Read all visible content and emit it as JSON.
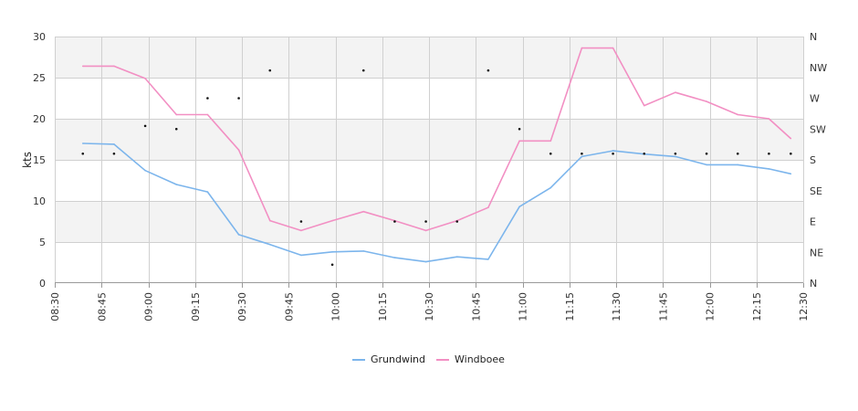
{
  "chart_data": {
    "type": "line",
    "ylabel": "kts",
    "ylim": [
      0,
      30
    ],
    "y_ticks": [
      "0",
      "5",
      "10",
      "15",
      "20",
      "25",
      "30"
    ],
    "y2_ticks": [
      "N",
      "NE",
      "E",
      "SE",
      "S",
      "SW",
      "W",
      "NW",
      "N"
    ],
    "x_ticks": [
      "08:30",
      "08:45",
      "09:00",
      "09:15",
      "09:30",
      "09:45",
      "10:00",
      "10:15",
      "10:30",
      "10:45",
      "11:00",
      "11:15",
      "11:30",
      "11:45",
      "12:00",
      "12:15",
      "12:30"
    ],
    "x": [
      "08:39",
      "08:49",
      "08:59",
      "09:09",
      "09:19",
      "09:29",
      "09:39",
      "09:49",
      "09:59",
      "10:09",
      "10:19",
      "10:29",
      "10:39",
      "10:49",
      "10:59",
      "11:09",
      "11:19",
      "11:29",
      "11:39",
      "11:49",
      "11:59",
      "12:09",
      "12:19",
      "12:26"
    ],
    "series": [
      {
        "name": "Grundwind",
        "color": "#7cb5ec",
        "values": [
          17.0,
          16.9,
          13.7,
          12.0,
          11.1,
          5.9,
          4.7,
          3.4,
          3.8,
          3.9,
          3.1,
          2.6,
          3.2,
          2.9,
          9.3,
          11.6,
          15.4,
          16.1,
          15.7,
          15.4,
          14.4,
          14.4,
          13.9,
          13.3
        ]
      },
      {
        "name": "Windboee",
        "color": "#f28fc3",
        "values": [
          26.4,
          26.4,
          24.9,
          20.5,
          20.5,
          16.2,
          7.6,
          6.4,
          7.6,
          8.7,
          7.6,
          6.4,
          7.6,
          9.2,
          17.3,
          17.3,
          28.6,
          28.6,
          21.6,
          23.2,
          22.1,
          20.5,
          20.0,
          17.6
        ]
      }
    ],
    "direction": {
      "scale": [
        "N",
        "NE",
        "E",
        "SE",
        "S",
        "SW",
        "W",
        "NW",
        "N"
      ],
      "x": [
        "08:39",
        "08:49",
        "08:59",
        "09:09",
        "09:19",
        "09:29",
        "09:39",
        "09:49",
        "09:59",
        "10:09",
        "10:19",
        "10:29",
        "10:39",
        "10:49",
        "10:59",
        "11:09",
        "11:19",
        "11:29",
        "11:39",
        "11:49",
        "11:59",
        "12:09",
        "12:19",
        "12:26"
      ],
      "values": [
        4.2,
        4.2,
        5.1,
        5.0,
        6.0,
        6.0,
        6.9,
        2.0,
        0.6,
        6.9,
        2.0,
        2.0,
        2.0,
        6.9,
        5.0,
        4.2,
        4.2,
        4.2,
        4.2,
        4.2,
        4.2,
        4.2,
        4.2,
        4.2
      ]
    },
    "grid": true,
    "legend_position": "bottom-center"
  },
  "colors": {
    "band": "#f3f3f3",
    "grid": "#d0d0d0",
    "grundwind": "#7cb5ec",
    "windboee": "#f28fc3"
  }
}
